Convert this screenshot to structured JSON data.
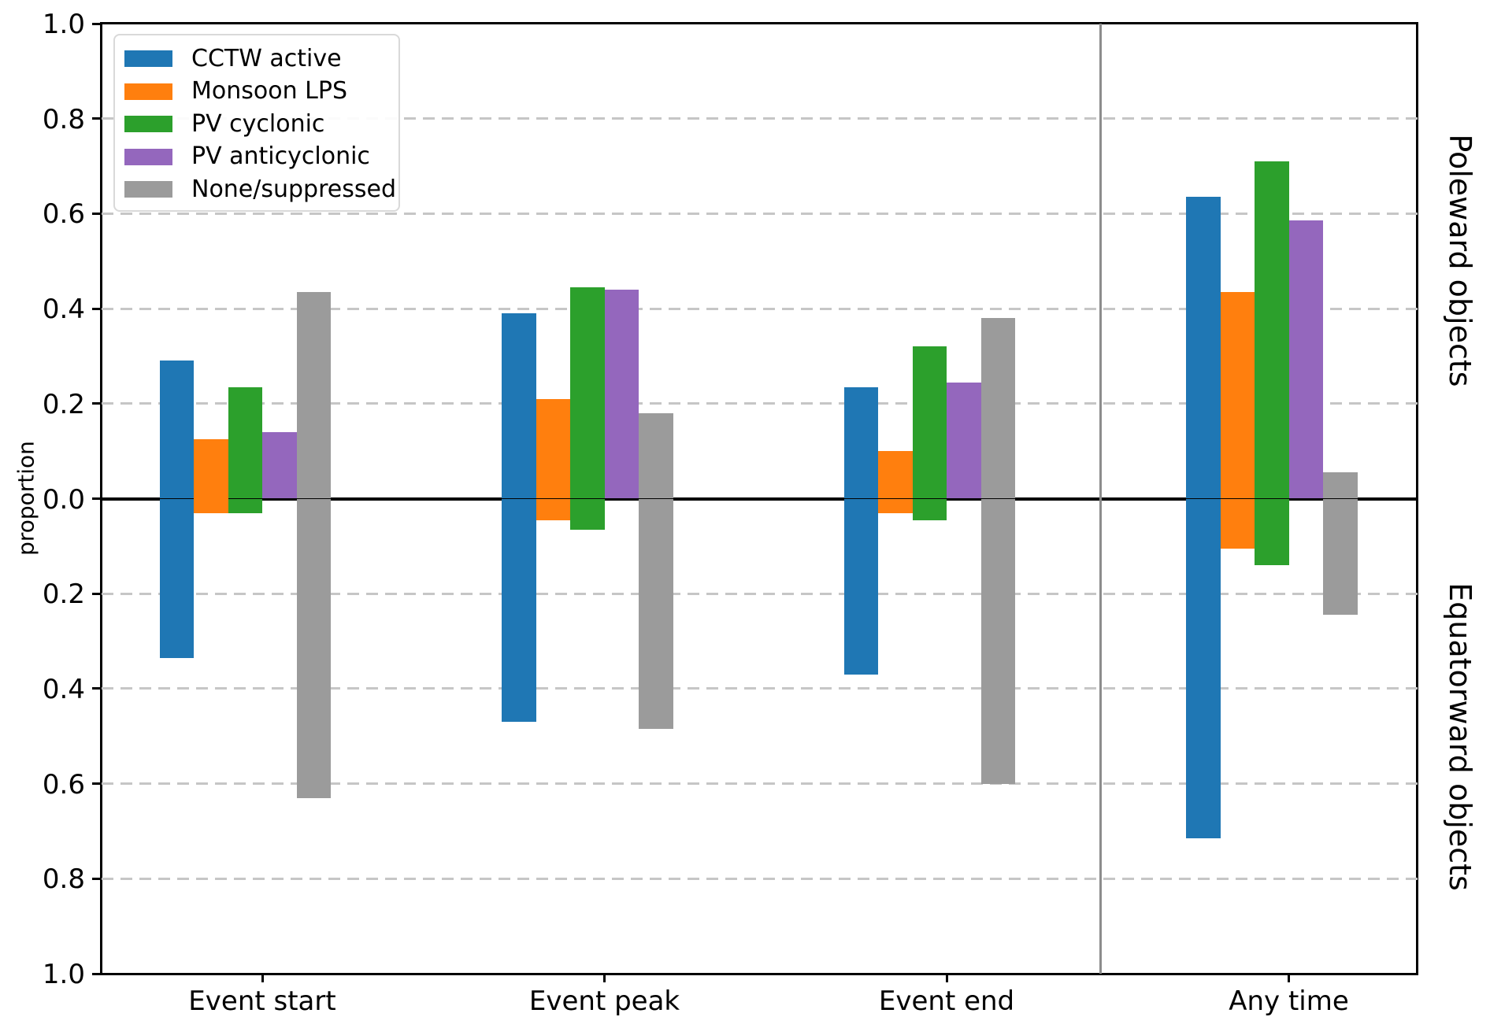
{
  "chart_data": {
    "type": "bar",
    "variant": "diverging-grouped-vertical",
    "ylabel": "proportion",
    "categories": [
      "Event start",
      "Event peak",
      "Event end",
      "Any time"
    ],
    "series": [
      {
        "name": "CCTW active",
        "color": "#1f77b4",
        "poleward": [
          0.29,
          0.39,
          0.235,
          0.635
        ],
        "equatorward": [
          0.335,
          0.47,
          0.37,
          0.715
        ]
      },
      {
        "name": "Monsoon LPS",
        "color": "#ff7f0e",
        "poleward": [
          0.125,
          0.21,
          0.1,
          0.435
        ],
        "equatorward": [
          0.03,
          0.045,
          0.03,
          0.105
        ]
      },
      {
        "name": "PV cyclonic",
        "color": "#2ca02c",
        "poleward": [
          0.235,
          0.445,
          0.32,
          0.71
        ],
        "equatorward": [
          0.03,
          0.065,
          0.045,
          0.14
        ]
      },
      {
        "name": "PV anticyclonic",
        "color": "#9467bd",
        "poleward": [
          0.14,
          0.44,
          0.245,
          0.585
        ],
        "equatorward": [
          0.0,
          0.0,
          0.0,
          0.0
        ]
      },
      {
        "name": "None/suppressed",
        "color": "#9b9b9b",
        "poleward": [
          0.435,
          0.18,
          0.38,
          0.055
        ],
        "equatorward": [
          0.63,
          0.485,
          0.6,
          0.245
        ]
      }
    ],
    "ylim": [
      -1.0,
      1.0
    ],
    "y_ticks": [
      {
        "value": 1.0,
        "label": "1.0"
      },
      {
        "value": 0.8,
        "label": "0.8"
      },
      {
        "value": 0.6,
        "label": "0.6"
      },
      {
        "value": 0.4,
        "label": "0.4"
      },
      {
        "value": 0.2,
        "label": "0.2"
      },
      {
        "value": 0.0,
        "label": "0.0"
      },
      {
        "value": -0.2,
        "label": "0.2"
      },
      {
        "value": -0.4,
        "label": "0.4"
      },
      {
        "value": -0.6,
        "label": "0.6"
      },
      {
        "value": -0.8,
        "label": "0.8"
      },
      {
        "value": -1.0,
        "label": "1.0"
      }
    ],
    "grid": {
      "horizontal": true,
      "style": "dashed",
      "interval": 0.2,
      "color": "#c6c6c6"
    },
    "zero_line_color": "#000000",
    "region_labels": {
      "upper": "Poleward objects",
      "lower": "Equatorward objects"
    },
    "legend": {
      "position": "upper-left"
    },
    "separator": {
      "between": [
        "Event end",
        "Any time"
      ],
      "color": "#8c8c8c"
    }
  }
}
